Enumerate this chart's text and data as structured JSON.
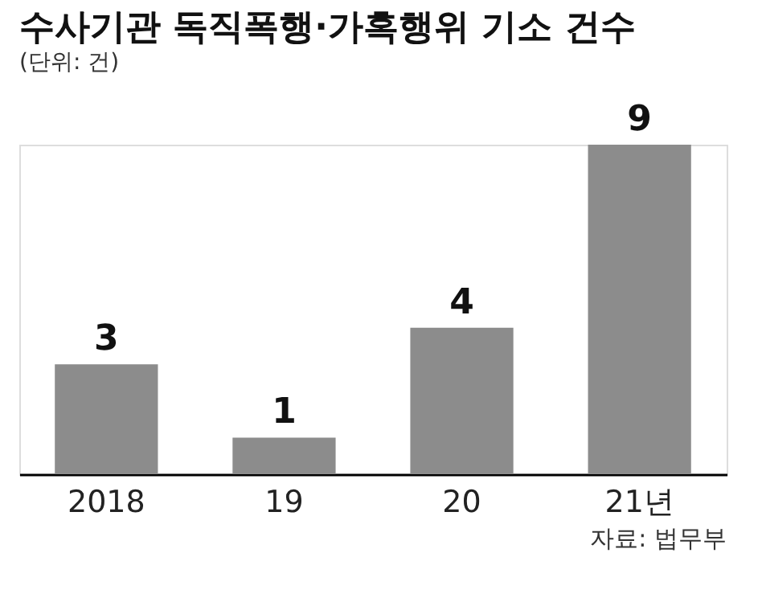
{
  "chart_data": {
    "type": "bar",
    "title": "수사기관 독직폭행·가혹행위 기소 건수",
    "subtitle": "(단위: 건)",
    "categories": [
      "2018",
      "19",
      "20",
      "21년"
    ],
    "values": [
      3,
      1,
      4,
      9
    ],
    "color": "#8c8c8c",
    "data_labels": true,
    "annotations": [
      "자료: 법무부"
    ]
  }
}
